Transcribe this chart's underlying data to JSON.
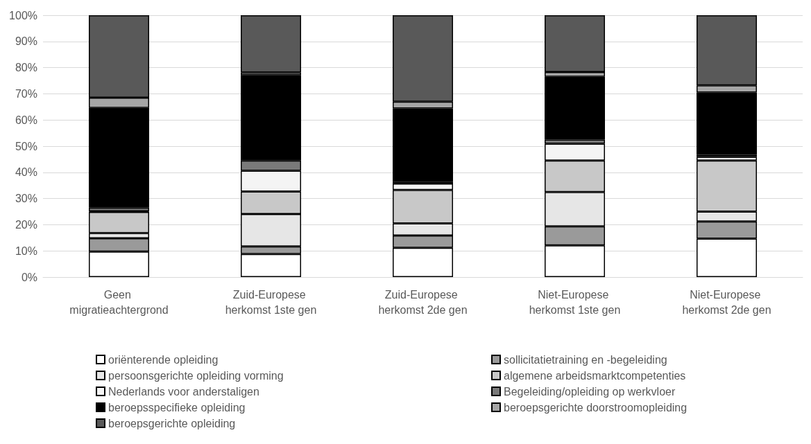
{
  "chart_data": {
    "type": "bar",
    "stacked": true,
    "categories": [
      "Geen migratieachtergrond",
      "Zuid-Europese herkomst 1ste gen",
      "Zuid-Europese herkomst 2de gen",
      "Niet-Europese herkomst 1ste gen",
      "Niet-Europese herkomst 2de gen"
    ],
    "series": [
      {
        "name": "oriënterende opleiding",
        "color": "#ffffff",
        "values": [
          9.7,
          8.8,
          11.2,
          12.1,
          14.7
        ]
      },
      {
        "name": "sollicitatietraining en -begeleiding",
        "color": "#9a9a9a",
        "values": [
          5.1,
          2.9,
          4.7,
          7.3,
          6.5
        ]
      },
      {
        "name": "persoonsgerichte opleiding vorming",
        "color": "#e6e6e6",
        "values": [
          2.0,
          12.4,
          4.6,
          13.1,
          3.8
        ]
      },
      {
        "name": "algemene arbeidsmarktcompetenties",
        "color": "#c8c8c8",
        "values": [
          8.1,
          8.6,
          12.8,
          12.0,
          19.5
        ]
      },
      {
        "name": "Nederlands voor anderstaligen",
        "color": "#f4f4f4",
        "values": [
          0.2,
          7.9,
          2.4,
          6.4,
          1.4
        ]
      },
      {
        "name": "Begeleiding/opleiding op werkvloer",
        "color": "#7a7a7a",
        "values": [
          1.4,
          3.9,
          0.6,
          1.6,
          0.8
        ]
      },
      {
        "name": "beroepsspecifieke opleiding",
        "color": "#000000",
        "values": [
          38.1,
          32.7,
          28.1,
          24.0,
          23.8
        ]
      },
      {
        "name": "beroepsgerichte doorstroomopleiding",
        "color": "#a6a6a6",
        "values": [
          3.9,
          1.0,
          2.6,
          1.8,
          2.7
        ]
      },
      {
        "name": "beroepsgerichte opleiding",
        "color": "#595959",
        "values": [
          31.5,
          21.8,
          33.0,
          21.7,
          26.8
        ]
      }
    ],
    "ylim": [
      0,
      100
    ],
    "yticks": [
      {
        "value": 0,
        "label": "0%"
      },
      {
        "value": 10,
        "label": "10%"
      },
      {
        "value": 20,
        "label": "20%"
      },
      {
        "value": 30,
        "label": "30%"
      },
      {
        "value": 40,
        "label": "40%"
      },
      {
        "value": 50,
        "label": "50%"
      },
      {
        "value": 60,
        "label": "60%"
      },
      {
        "value": 70,
        "label": "70%"
      },
      {
        "value": 80,
        "label": "80%"
      },
      {
        "value": 90,
        "label": "90%"
      },
      {
        "value": 100,
        "label": "100%"
      }
    ],
    "grid": "y",
    "legend": "bottom"
  }
}
